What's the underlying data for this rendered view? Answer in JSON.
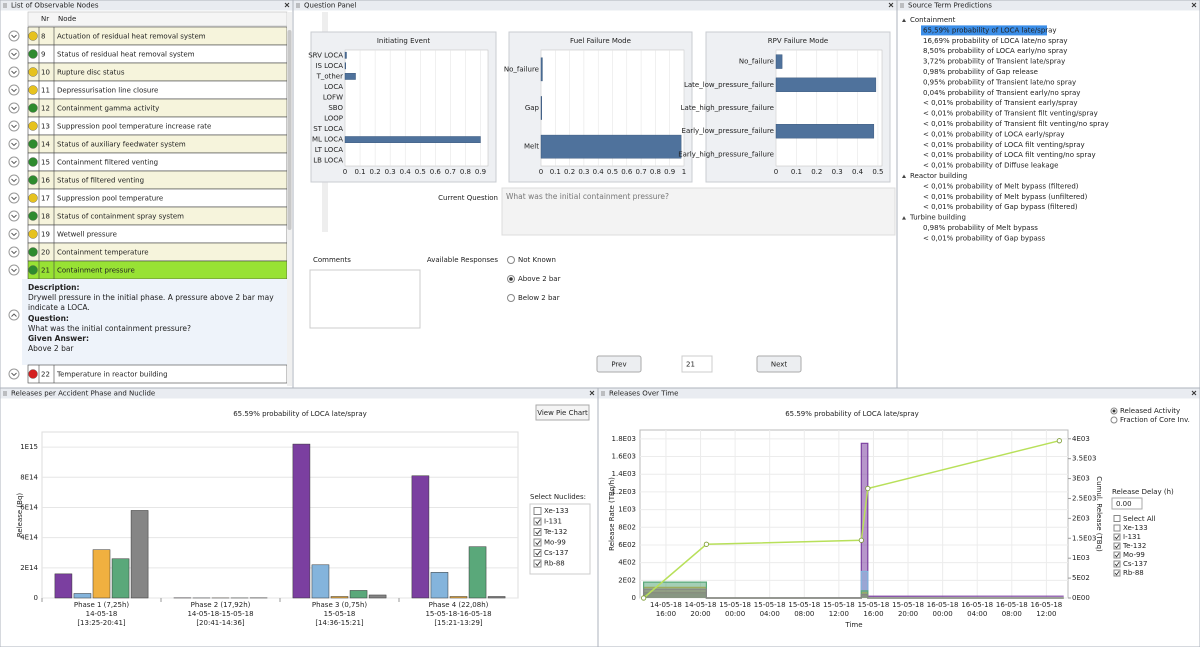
{
  "nodes_panel": {
    "title": "List of Observable Nodes",
    "header": {
      "nr": "Nr",
      "node": "Node"
    },
    "rows": [
      {
        "nr": 8,
        "node": "Actuation of residual heat removal system",
        "status": "#e6c21e"
      },
      {
        "nr": 9,
        "node": "Status of residual heat removal system",
        "status": "#2e8b2e"
      },
      {
        "nr": 10,
        "node": "Rupture disc status",
        "status": "#e6c21e"
      },
      {
        "nr": 11,
        "node": "Depressurisation line closure",
        "status": "#e6c21e"
      },
      {
        "nr": 12,
        "node": "Containment gamma activity",
        "status": "#2e8b2e"
      },
      {
        "nr": 13,
        "node": "Suppression pool temperature increase rate",
        "status": "#e6c21e"
      },
      {
        "nr": 14,
        "node": "Status of auxiliary feedwater system",
        "status": "#2e8b2e"
      },
      {
        "nr": 15,
        "node": "Containment filtered venting",
        "status": "#2e8b2e"
      },
      {
        "nr": 16,
        "node": "Status of filtered venting",
        "status": "#2e8b2e"
      },
      {
        "nr": 17,
        "node": "Suppression pool temperature",
        "status": "#e6c21e"
      },
      {
        "nr": 18,
        "node": "Status of containment spray system",
        "status": "#2e8b2e"
      },
      {
        "nr": 19,
        "node": "Wetwell pressure",
        "status": "#e6c21e"
      },
      {
        "nr": 20,
        "node": "Containment temperature",
        "status": "#2e8b2e"
      },
      {
        "nr": 21,
        "node": "Containment pressure",
        "status": "#2e8b2e",
        "selected": true
      }
    ],
    "detail": {
      "description_label": "Description:",
      "description": "Drywell pressure in the initial phase. A pressure above 2 bar may indicate a LOCA.",
      "question_label": "Question:",
      "question": "What was the initial containment pressure?",
      "answer_label": "Given Answer:",
      "answer": "Above 2 bar"
    },
    "after": [
      {
        "nr": 22,
        "node": "Temperature in reactor building",
        "status": "#d42020"
      }
    ]
  },
  "question_panel": {
    "title": "Question Panel",
    "chart_data": [
      {
        "type": "hbar",
        "title": "Initiating Event",
        "color": "#4f729c",
        "categories": [
          "SRV LOCA",
          "IS LOCA",
          "T_other",
          "LOCA",
          "LOFW",
          "SBO",
          "LOOP",
          "ST LOCA",
          "ML LOCA",
          "LT LOCA",
          "LB LOCA"
        ],
        "values": [
          0.01,
          0.005,
          0.07,
          0,
          0,
          0,
          0,
          0,
          0.9,
          0,
          0
        ],
        "xlim": [
          0,
          0.95
        ],
        "xticks": [
          0,
          0.1,
          0.2,
          0.3,
          0.4,
          0.5,
          0.6,
          0.7,
          0.8,
          0.9
        ],
        "grid": true
      },
      {
        "type": "hbar",
        "title": "Fuel Failure Mode",
        "color": "#4f729c",
        "categories": [
          "No_failure",
          "Gap",
          "Melt"
        ],
        "values": [
          0.01,
          0.005,
          0.98
        ],
        "xlim": [
          0,
          1
        ],
        "xticks": [
          0,
          0.1,
          0.2,
          0.3,
          0.4,
          0.5,
          0.6,
          0.7,
          0.8,
          0.9,
          1
        ],
        "grid": true
      },
      {
        "type": "hbar",
        "title": "RPV Failure Mode",
        "color": "#4f729c",
        "categories": [
          "No_failure",
          "Late_low_pressure_failure",
          "Late_high_pressure_failure",
          "Early_low_pressure_failure",
          "Early_high_pressure_failure"
        ],
        "values": [
          0.03,
          0.49,
          0,
          0.48,
          0
        ],
        "xlim": [
          0,
          0.52
        ],
        "xticks": [
          0,
          0.1,
          0.2,
          0.3,
          0.4,
          0.5
        ],
        "grid": true
      }
    ],
    "current_question_label": "Current Question",
    "current_question": "What was the initial containment pressure?",
    "comments_label": "Comments",
    "responses_label": "Available Responses",
    "responses": [
      "Not Known",
      "Above 2 bar",
      "Below 2 bar"
    ],
    "selected_response": 1,
    "prev": "Prev",
    "node_number": 21,
    "next": "Next"
  },
  "source_term": {
    "title": "Source Term Predictions",
    "groups": [
      {
        "name": "Containment",
        "items": [
          {
            "text": "65,59% probability of LOCA late/spray",
            "color": "#c0304a",
            "selected": true
          },
          {
            "text": "16,69% probability of LOCA late/no spray",
            "color": "#c0304a"
          },
          {
            "text": "8,50% probability of LOCA early/no spray",
            "color": "#c0304a"
          },
          {
            "text": "3,72% probability of Transient late/spray",
            "color": "#c0304a"
          },
          {
            "text": "0,98% probability of Gap release",
            "color": "#c0304a"
          },
          {
            "text": "0,95% probability of Transient late/no spray",
            "color": "#c0304a"
          },
          {
            "text": "0,04% probability of Transient early/no spray",
            "color": "#c0304a"
          },
          {
            "text": "< 0,01% probability of Transient early/spray",
            "color": "#222222"
          },
          {
            "text": "< 0,01% probability of Transient filt venting/spray",
            "color": "#222222"
          },
          {
            "text": "< 0,01% probability of Transient filt venting/no spray",
            "color": "#222222"
          },
          {
            "text": "< 0,01% probability of LOCA early/spray",
            "color": "#222222"
          },
          {
            "text": "< 0,01% probability of LOCA filt venting/spray",
            "color": "#222222"
          },
          {
            "text": "< 0,01% probability of LOCA filt venting/no spray",
            "color": "#222222"
          },
          {
            "text": "< 0,01% probability of Diffuse leakage",
            "color": "#222222"
          }
        ]
      },
      {
        "name": "Reactor building",
        "items": [
          {
            "text": "< 0,01% probability of Melt bypass (filtered)",
            "color": "#222222"
          },
          {
            "text": "< 0,01% probability of Melt bypass (unfiltered)",
            "color": "#222222"
          },
          {
            "text": "< 0,01% probability of Gap bypass (filtered)",
            "color": "#222222"
          }
        ]
      },
      {
        "name": "Turbine building",
        "items": [
          {
            "text": "0,98% probability of Melt bypass",
            "color": "#c0304a"
          },
          {
            "text": "< 0,01% probability of Gap bypass",
            "color": "#c0304a"
          }
        ]
      }
    ]
  },
  "phase_panel": {
    "title": "Releases per Accident Phase and Nuclide",
    "button": "View Pie Chart",
    "legend_title": "Select Nuclides:",
    "chart_data": {
      "type": "bar",
      "title": "65.59% probability of LOCA late/spray",
      "ylabel": "Release (Bq)",
      "categories": [
        [
          "Phase 1  (7,25h)",
          "14-05-18",
          "[13:25-20:41]"
        ],
        [
          "Phase 2  (17,92h)",
          "14-05-18-15-05-18",
          "[20:41-14:36]"
        ],
        [
          "Phase 3  (0,75h)",
          "15-05-18",
          "[14:36-15:21]"
        ],
        [
          "Phase 4  (22,08h)",
          "15-05-18-16-05-18",
          "[15:21-13:29]"
        ]
      ],
      "series": [
        {
          "name": "Xe-133",
          "color": "#a02040",
          "checked": false,
          "values": [
            null,
            null,
            null,
            null
          ]
        },
        {
          "name": "I-131",
          "color": "#7b3fa0",
          "checked": true,
          "values": [
            160000000000000.0,
            1000000000000.0,
            1020000000000000.0,
            810000000000000.0
          ]
        },
        {
          "name": "Te-132",
          "color": "#84b4dc",
          "checked": true,
          "values": [
            30000000000000.0,
            500000000000.0,
            220000000000000.0,
            170000000000000.0
          ]
        },
        {
          "name": "Mo-99",
          "color": "#f0b040",
          "checked": true,
          "values": [
            320000000000000.0,
            500000000000.0,
            10000000000000.0,
            10000000000000.0
          ]
        },
        {
          "name": "Cs-137",
          "color": "#5aa87a",
          "checked": true,
          "values": [
            260000000000000.0,
            500000000000.0,
            50000000000000.0,
            340000000000000.0
          ]
        },
        {
          "name": "Rb-88",
          "color": "#858585",
          "checked": true,
          "values": [
            580000000000000.0,
            1000000000000.0,
            20000000000000.0,
            10000000000000.0
          ]
        }
      ],
      "ylim": [
        0,
        1100000000000000.0
      ],
      "yticks": [
        0,
        {
          "value": 200000000000000.0,
          "label": "2E14"
        },
        {
          "value": 400000000000000.0,
          "label": "4E14"
        },
        {
          "value": 600000000000000.0,
          "label": "6E14"
        },
        {
          "value": 800000000000000.0,
          "label": "8E14"
        },
        {
          "value": 1000000000000000.0,
          "label": "1E15"
        }
      ],
      "grid": true
    }
  },
  "time_panel": {
    "title": "Releases Over Time",
    "modes": [
      "Released Activity",
      "Fraction of Core Inv."
    ],
    "selected_mode": 0,
    "delay_label": "Release Delay (h)",
    "delay_value": "0.00",
    "select_all": "Select All",
    "chart_data": {
      "type": "line",
      "title": "65.59% probability of LOCA late/spray",
      "xlabel": "Time",
      "ylabel": "Release Rate (TBq/h)",
      "y2label": "Cumul. Release (TBq)",
      "x": [
        -2.58,
        -2.58,
        4.68,
        4.68,
        22.6,
        22.6,
        23.35,
        23.35,
        46
      ],
      "series": [
        {
          "name": "Xe-133",
          "color": "#a02040",
          "checked": false,
          "values": [
            null,
            null,
            null,
            null,
            null,
            null,
            null,
            null,
            null
          ]
        },
        {
          "name": "I-131",
          "color": "#7b3fa0",
          "checked": true,
          "values": [
            0,
            60,
            60,
            0,
            0,
            1750,
            1750,
            20,
            20
          ]
        },
        {
          "name": "Te-132",
          "color": "#84b4dc",
          "checked": true,
          "values": [
            0,
            40,
            40,
            0,
            0,
            300,
            300,
            0,
            0
          ]
        },
        {
          "name": "Mo-99",
          "color": "#f0b040",
          "checked": true,
          "values": [
            0,
            120,
            120,
            0,
            0,
            60,
            60,
            0,
            0
          ]
        },
        {
          "name": "Cs-137",
          "color": "#5aa87a",
          "checked": true,
          "values": [
            0,
            180,
            180,
            0,
            0,
            80,
            80,
            0,
            0
          ]
        },
        {
          "name": "Rb-88",
          "color": "#858585",
          "checked": true,
          "values": [
            0,
            100,
            100,
            0,
            0,
            40,
            40,
            0,
            0
          ]
        }
      ],
      "cumulative": {
        "color": "#b8e05a",
        "axis": "y2",
        "x": [
          -2.58,
          4.68,
          22.6,
          23.35,
          45.5
        ],
        "values": [
          0,
          1350,
          1450,
          2750,
          3950
        ]
      },
      "xlim": [
        -3,
        46.5
      ],
      "xticks": [
        {
          "value": 0,
          "label": [
            "14-05-18",
            "16:00"
          ]
        },
        {
          "value": 4,
          "label": [
            "14-05-18",
            "20:00"
          ]
        },
        {
          "value": 8,
          "label": [
            "15-05-18",
            "00:00"
          ]
        },
        {
          "value": 12,
          "label": [
            "15-05-18",
            "04:00"
          ]
        },
        {
          "value": 16,
          "label": [
            "15-05-18",
            "08:00"
          ]
        },
        {
          "value": 20,
          "label": [
            "15-05-18",
            "12:00"
          ]
        },
        {
          "value": 24,
          "label": [
            "15-05-18",
            "16:00"
          ]
        },
        {
          "value": 28,
          "label": [
            "15-05-18",
            "20:00"
          ]
        },
        {
          "value": 32,
          "label": [
            "16-05-18",
            "00:00"
          ]
        },
        {
          "value": 36,
          "label": [
            "16-05-18",
            "04:00"
          ]
        },
        {
          "value": 40,
          "label": [
            "16-05-18",
            "08:00"
          ]
        },
        {
          "value": 44,
          "label": [
            "16-05-18",
            "12:00"
          ]
        }
      ],
      "ylim": [
        0,
        1900
      ],
      "yticks": [
        0,
        {
          "value": 200,
          "label": "2E02"
        },
        {
          "value": 400,
          "label": "4E02"
        },
        {
          "value": 600,
          "label": "6E02"
        },
        {
          "value": 800,
          "label": "8E02"
        },
        {
          "value": 1000,
          "label": "1E03"
        },
        {
          "value": 1200,
          "label": "1.2E03"
        },
        {
          "value": 1400,
          "label": "1.4E03"
        },
        {
          "value": 1600,
          "label": "1.6E03"
        },
        {
          "value": 1800,
          "label": "1.8E03"
        }
      ],
      "y2lim": [
        0,
        4220
      ],
      "y2ticks": [
        {
          "value": 0,
          "label": "0E00"
        },
        {
          "value": 500,
          "label": "5E02"
        },
        {
          "value": 1000,
          "label": "1E03"
        },
        {
          "value": 1500,
          "label": "1.5E03"
        },
        {
          "value": 2000,
          "label": "2E03"
        },
        {
          "value": 2500,
          "label": "2.5E03"
        },
        {
          "value": 3000,
          "label": "3E03"
        },
        {
          "value": 3500,
          "label": "3.5E03"
        },
        {
          "value": 4000,
          "label": "4E03"
        }
      ],
      "grid": true
    }
  }
}
